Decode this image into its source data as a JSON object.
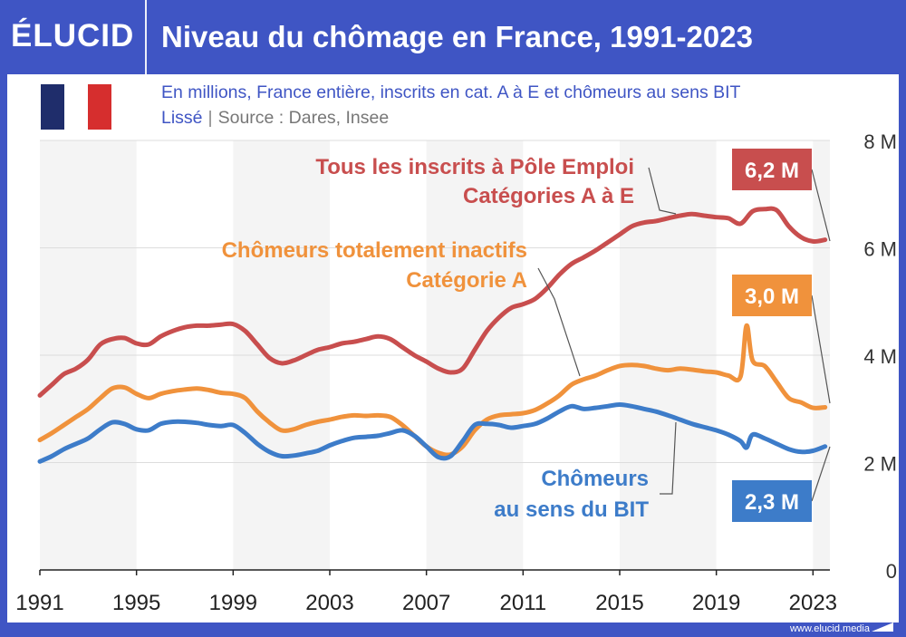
{
  "header": {
    "logo_text": "ÉLUCID",
    "title": "Niveau du chômage en France, 1991-2023"
  },
  "subtitle": "En millions, France entière, inscrits en cat. A à E et chômeurs au sens BIT",
  "smoothing_label": "Lissé",
  "separator": "|",
  "source_label": "Source : Dares, Insee",
  "footer": {
    "url": "www.elucid.media"
  },
  "colors": {
    "brand": "#3F55C4",
    "all_registered": "#C84E4E",
    "category_a": "#F0923C",
    "bit": "#3D7CC9",
    "flag_blue": "#1F2D6B",
    "flag_red": "#D62E2E"
  },
  "chart_data": {
    "type": "line",
    "y_axis_position": "right",
    "ylim": [
      0,
      8
    ],
    "xlim": [
      1991,
      2023.7
    ],
    "y_ticks": [
      {
        "value": 0,
        "label": "0"
      },
      {
        "value": 2,
        "label": "2 M"
      },
      {
        "value": 4,
        "label": "4 M"
      },
      {
        "value": 6,
        "label": "6 M"
      },
      {
        "value": 8,
        "label": "8 M"
      }
    ],
    "x_ticks": [
      {
        "value": 1991,
        "label": "1991"
      },
      {
        "value": 1995,
        "label": "1995"
      },
      {
        "value": 1999,
        "label": "1999"
      },
      {
        "value": 2003,
        "label": "2003"
      },
      {
        "value": 2007,
        "label": "2007"
      },
      {
        "value": 2011,
        "label": "2011"
      },
      {
        "value": 2015,
        "label": "2015"
      },
      {
        "value": 2019,
        "label": "2019"
      },
      {
        "value": 2023,
        "label": "2023"
      }
    ],
    "series": [
      {
        "key": "all_registered",
        "label_lines": [
          "Tous les inscrits à Pôle Emploi",
          "Catégories A à E"
        ],
        "end_label": "6,2 M",
        "x": [
          1991,
          1991.5,
          1992,
          1992.5,
          1993,
          1993.5,
          1994,
          1994.5,
          1995,
          1995.5,
          1996,
          1996.5,
          1997,
          1997.5,
          1998,
          1998.5,
          1999,
          1999.5,
          2000,
          2000.5,
          2001,
          2001.5,
          2002,
          2002.5,
          2003,
          2003.5,
          2004,
          2004.5,
          2005,
          2005.5,
          2006,
          2006.5,
          2007,
          2007.5,
          2008,
          2008.5,
          2009,
          2009.5,
          2010,
          2010.5,
          2011,
          2011.5,
          2012,
          2012.5,
          2013,
          2013.5,
          2014,
          2014.5,
          2015,
          2015.5,
          2016,
          2016.5,
          2017,
          2017.5,
          2018,
          2018.5,
          2019,
          2019.5,
          2020,
          2020.5,
          2021,
          2021.5,
          2022,
          2022.5,
          2023,
          2023.5
        ],
        "values": [
          3.25,
          3.45,
          3.65,
          3.75,
          3.92,
          4.2,
          4.3,
          4.32,
          4.22,
          4.2,
          4.35,
          4.45,
          4.52,
          4.55,
          4.55,
          4.57,
          4.58,
          4.45,
          4.2,
          3.95,
          3.85,
          3.9,
          4.0,
          4.1,
          4.15,
          4.22,
          4.25,
          4.3,
          4.35,
          4.3,
          4.15,
          4.0,
          3.88,
          3.75,
          3.68,
          3.75,
          4.1,
          4.45,
          4.7,
          4.88,
          4.95,
          5.05,
          5.25,
          5.5,
          5.7,
          5.82,
          5.95,
          6.1,
          6.25,
          6.4,
          6.47,
          6.5,
          6.55,
          6.6,
          6.63,
          6.6,
          6.57,
          6.55,
          6.45,
          6.68,
          6.72,
          6.7,
          6.4,
          6.2,
          6.12,
          6.15
        ]
      },
      {
        "key": "category_a",
        "label_lines": [
          "Chômeurs totalement inactifs",
          "Catégorie A"
        ],
        "end_label": "3,0 M",
        "x": [
          1991,
          1991.5,
          1992,
          1992.5,
          1993,
          1993.5,
          1994,
          1994.5,
          1995,
          1995.5,
          1996,
          1996.5,
          1997,
          1997.5,
          1998,
          1998.5,
          1999,
          1999.5,
          2000,
          2000.5,
          2001,
          2001.5,
          2002,
          2002.5,
          2003,
          2003.5,
          2004,
          2004.5,
          2005,
          2005.5,
          2006,
          2006.5,
          2007,
          2007.5,
          2008,
          2008.5,
          2009,
          2009.5,
          2010,
          2010.5,
          2011,
          2011.5,
          2012,
          2012.5,
          2013,
          2013.5,
          2014,
          2014.5,
          2015,
          2015.5,
          2016,
          2016.5,
          2017,
          2017.5,
          2018,
          2018.5,
          2019,
          2019.5,
          2020,
          2020.25,
          2020.5,
          2021,
          2021.5,
          2022,
          2022.5,
          2023,
          2023.5
        ],
        "values": [
          2.42,
          2.55,
          2.7,
          2.85,
          3.0,
          3.2,
          3.38,
          3.4,
          3.28,
          3.2,
          3.28,
          3.33,
          3.36,
          3.38,
          3.35,
          3.3,
          3.28,
          3.2,
          2.95,
          2.75,
          2.6,
          2.62,
          2.7,
          2.76,
          2.8,
          2.85,
          2.88,
          2.87,
          2.88,
          2.85,
          2.7,
          2.5,
          2.3,
          2.18,
          2.15,
          2.3,
          2.6,
          2.8,
          2.88,
          2.9,
          2.92,
          2.98,
          3.1,
          3.25,
          3.45,
          3.55,
          3.62,
          3.72,
          3.8,
          3.82,
          3.8,
          3.75,
          3.72,
          3.75,
          3.73,
          3.7,
          3.68,
          3.62,
          3.6,
          4.55,
          3.9,
          3.8,
          3.5,
          3.2,
          3.12,
          3.02,
          3.03
        ]
      },
      {
        "key": "bit",
        "label_lines": [
          "Chômeurs",
          "au sens du BIT"
        ],
        "end_label": "2,3 M",
        "x": [
          1991,
          1991.5,
          1992,
          1992.5,
          1993,
          1993.5,
          1994,
          1994.5,
          1995,
          1995.5,
          1996,
          1996.5,
          1997,
          1997.5,
          1998,
          1998.5,
          1999,
          1999.5,
          2000,
          2000.5,
          2001,
          2001.5,
          2002,
          2002.5,
          2003,
          2003.5,
          2004,
          2004.5,
          2005,
          2005.5,
          2006,
          2006.5,
          2007,
          2007.5,
          2008,
          2008.5,
          2009,
          2009.5,
          2010,
          2010.5,
          2011,
          2011.5,
          2012,
          2012.5,
          2013,
          2013.5,
          2014,
          2014.5,
          2015,
          2015.5,
          2016,
          2016.5,
          2017,
          2017.5,
          2018,
          2018.5,
          2019,
          2019.5,
          2020,
          2020.25,
          2020.5,
          2021,
          2021.5,
          2022,
          2022.5,
          2023,
          2023.5
        ],
        "values": [
          2.02,
          2.12,
          2.25,
          2.35,
          2.45,
          2.62,
          2.75,
          2.72,
          2.62,
          2.6,
          2.72,
          2.76,
          2.76,
          2.74,
          2.7,
          2.68,
          2.7,
          2.55,
          2.35,
          2.2,
          2.12,
          2.13,
          2.17,
          2.22,
          2.32,
          2.4,
          2.46,
          2.48,
          2.5,
          2.55,
          2.6,
          2.5,
          2.3,
          2.1,
          2.12,
          2.4,
          2.7,
          2.72,
          2.7,
          2.65,
          2.68,
          2.72,
          2.82,
          2.95,
          3.05,
          3.0,
          3.02,
          3.05,
          3.08,
          3.05,
          3.0,
          2.95,
          2.88,
          2.8,
          2.72,
          2.66,
          2.6,
          2.52,
          2.4,
          2.28,
          2.52,
          2.45,
          2.35,
          2.25,
          2.2,
          2.22,
          2.3
        ]
      }
    ]
  }
}
